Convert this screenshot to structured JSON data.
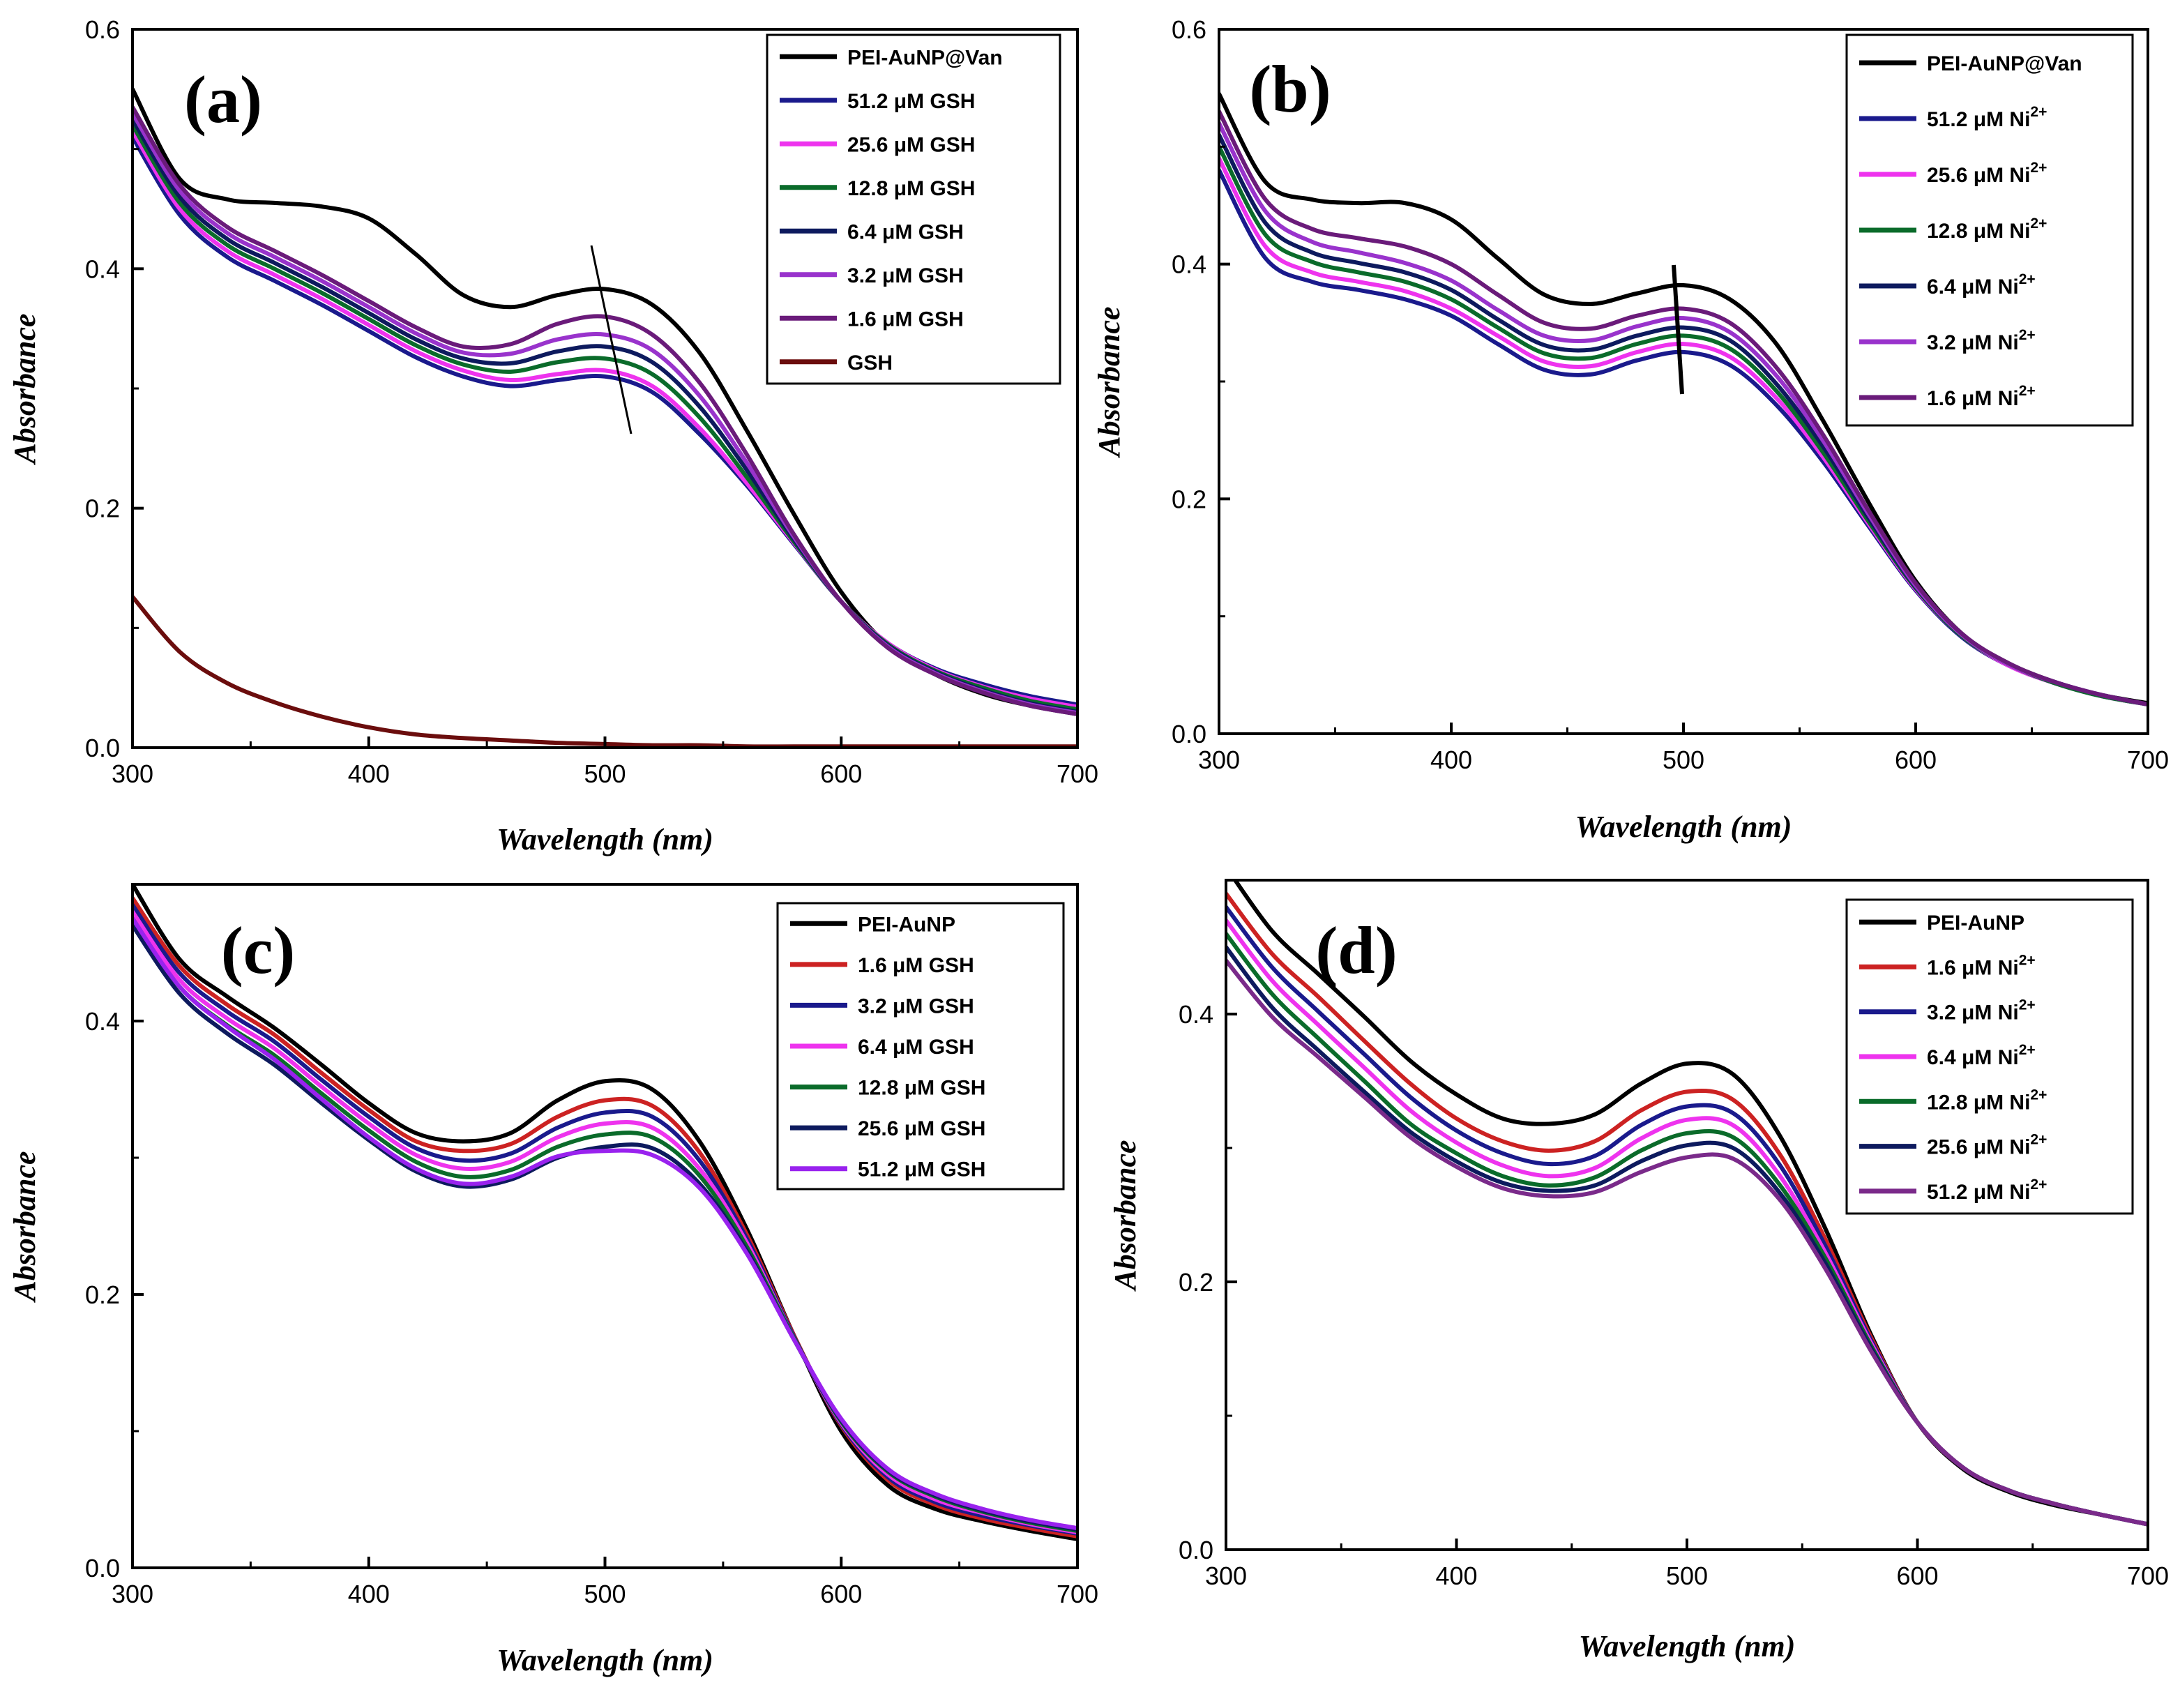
{
  "chart_data": [
    {
      "type": "line",
      "panel_label": "(a)",
      "xlabel": "Wavelength (nm)",
      "ylabel": "Absorbance",
      "xlim": [
        300,
        700
      ],
      "ylim": [
        0,
        0.6
      ],
      "xticks": [
        "300",
        "400",
        "500",
        "600",
        "700"
      ],
      "yticks": [
        "0.0",
        "0.2",
        "0.4",
        "0.6"
      ],
      "legend": "top-right",
      "x": [
        300,
        320,
        340,
        360,
        380,
        400,
        420,
        440,
        460,
        480,
        500,
        520,
        540,
        560,
        580,
        600,
        620,
        640,
        660,
        680,
        700
      ],
      "series": [
        {
          "name": "PEI-AuNP@Van",
          "color": "#000000",
          "values": [
            0.55,
            0.475,
            0.458,
            0.455,
            0.452,
            0.442,
            0.412,
            0.378,
            0.368,
            0.378,
            0.383,
            0.37,
            0.33,
            0.265,
            0.195,
            0.13,
            0.085,
            0.061,
            0.045,
            0.035,
            0.028
          ]
        },
        {
          "name": "51.2 μM GSH",
          "color": "#1a1a8c",
          "values": [
            0.51,
            0.445,
            0.41,
            0.39,
            0.37,
            0.348,
            0.326,
            0.31,
            0.302,
            0.307,
            0.31,
            0.297,
            0.262,
            0.219,
            0.17,
            0.122,
            0.087,
            0.066,
            0.053,
            0.043,
            0.036
          ]
        },
        {
          "name": "25.6 μM GSH",
          "color": "#ee33ee",
          "values": [
            0.515,
            0.45,
            0.415,
            0.395,
            0.375,
            0.353,
            0.331,
            0.315,
            0.307,
            0.312,
            0.315,
            0.302,
            0.267,
            0.221,
            0.171,
            0.122,
            0.087,
            0.065,
            0.051,
            0.041,
            0.034
          ]
        },
        {
          "name": "12.8 μM GSH",
          "color": "#0a6b2a",
          "values": [
            0.52,
            0.455,
            0.42,
            0.4,
            0.38,
            0.358,
            0.336,
            0.32,
            0.314,
            0.322,
            0.325,
            0.312,
            0.276,
            0.226,
            0.172,
            0.122,
            0.086,
            0.064,
            0.05,
            0.039,
            0.032
          ]
        },
        {
          "name": "6.4 μM GSH",
          "color": "#0d1a5e",
          "values": [
            0.525,
            0.46,
            0.425,
            0.405,
            0.385,
            0.363,
            0.341,
            0.325,
            0.321,
            0.331,
            0.335,
            0.322,
            0.285,
            0.232,
            0.174,
            0.122,
            0.085,
            0.063,
            0.048,
            0.037,
            0.03
          ]
        },
        {
          "name": "3.2 μM GSH",
          "color": "#9933cc",
          "values": [
            0.53,
            0.465,
            0.43,
            0.41,
            0.39,
            0.368,
            0.346,
            0.33,
            0.329,
            0.341,
            0.345,
            0.332,
            0.294,
            0.238,
            0.176,
            0.122,
            0.084,
            0.062,
            0.047,
            0.036,
            0.029
          ]
        },
        {
          "name": "1.6 μM GSH",
          "color": "#6a1b7a",
          "values": [
            0.535,
            0.47,
            0.435,
            0.415,
            0.395,
            0.373,
            0.351,
            0.335,
            0.337,
            0.354,
            0.36,
            0.345,
            0.305,
            0.245,
            0.178,
            0.122,
            0.083,
            0.061,
            0.046,
            0.035,
            0.028
          ]
        },
        {
          "name": "GSH",
          "color": "#6b0d0d",
          "values": [
            0.126,
            0.08,
            0.054,
            0.038,
            0.026,
            0.017,
            0.011,
            0.008,
            0.006,
            0.004,
            0.003,
            0.002,
            0.002,
            0.001,
            0.001,
            0.001,
            0.001,
            0.001,
            0.001,
            0.001,
            0.001
          ]
        }
      ]
    },
    {
      "type": "line",
      "panel_label": "(b)",
      "xlabel": "Wavelength (nm)",
      "ylabel": "Absorbance",
      "xlim": [
        300,
        700
      ],
      "ylim": [
        0,
        0.6
      ],
      "xticks": [
        "300",
        "400",
        "500",
        "600",
        "700"
      ],
      "yticks": [
        "0.0",
        "0.2",
        "0.4",
        "0.6"
      ],
      "legend": "top-right",
      "x": [
        300,
        320,
        340,
        360,
        380,
        400,
        420,
        440,
        460,
        480,
        500,
        520,
        540,
        560,
        580,
        600,
        620,
        640,
        660,
        680,
        700
      ],
      "series": [
        {
          "name": "PEI-AuNP@Van",
          "color": "#000000",
          "values": [
            0.545,
            0.47,
            0.455,
            0.452,
            0.452,
            0.438,
            0.405,
            0.374,
            0.366,
            0.375,
            0.382,
            0.37,
            0.332,
            0.267,
            0.196,
            0.13,
            0.085,
            0.06,
            0.044,
            0.033,
            0.026
          ]
        },
        {
          "name": "51.2 μM Ni2+",
          "color": "#1a1a8c",
          "values": [
            0.48,
            0.405,
            0.385,
            0.378,
            0.37,
            0.356,
            0.332,
            0.31,
            0.306,
            0.318,
            0.325,
            0.314,
            0.28,
            0.232,
            0.176,
            0.122,
            0.082,
            0.058,
            0.043,
            0.032,
            0.025
          ]
        },
        {
          "name": "25.6 μM Ni2+",
          "color": "#ee33ee",
          "values": [
            0.49,
            0.415,
            0.393,
            0.385,
            0.377,
            0.362,
            0.339,
            0.317,
            0.313,
            0.325,
            0.332,
            0.321,
            0.286,
            0.236,
            0.178,
            0.123,
            0.083,
            0.058,
            0.043,
            0.032,
            0.025
          ]
        },
        {
          "name": "12.8 μM Ni2+",
          "color": "#0a6b2a",
          "values": [
            0.5,
            0.425,
            0.402,
            0.393,
            0.385,
            0.37,
            0.346,
            0.324,
            0.32,
            0.332,
            0.339,
            0.328,
            0.292,
            0.24,
            0.18,
            0.124,
            0.083,
            0.059,
            0.043,
            0.032,
            0.025
          ]
        },
        {
          "name": "6.4 μM Ni2+",
          "color": "#0d1a5e",
          "values": [
            0.51,
            0.435,
            0.41,
            0.401,
            0.393,
            0.378,
            0.353,
            0.331,
            0.327,
            0.339,
            0.346,
            0.335,
            0.298,
            0.245,
            0.183,
            0.125,
            0.084,
            0.059,
            0.044,
            0.033,
            0.025
          ]
        },
        {
          "name": "3.2 μM Ni2+",
          "color": "#9933cc",
          "values": [
            0.52,
            0.445,
            0.419,
            0.41,
            0.401,
            0.386,
            0.361,
            0.339,
            0.335,
            0.347,
            0.354,
            0.342,
            0.305,
            0.25,
            0.186,
            0.126,
            0.084,
            0.059,
            0.044,
            0.033,
            0.025
          ]
        },
        {
          "name": "1.6 μM Ni2+",
          "color": "#6a1b7a",
          "values": [
            0.53,
            0.455,
            0.43,
            0.422,
            0.415,
            0.4,
            0.374,
            0.35,
            0.345,
            0.356,
            0.362,
            0.35,
            0.312,
            0.255,
            0.189,
            0.128,
            0.085,
            0.06,
            0.044,
            0.033,
            0.025
          ]
        }
      ]
    },
    {
      "type": "line",
      "panel_label": "(c)",
      "xlabel": "Wavelength (nm)",
      "ylabel": "Absorbance",
      "xlim": [
        300,
        700
      ],
      "ylim": [
        0,
        0.5
      ],
      "xticks": [
        "300",
        "400",
        "500",
        "600",
        "700"
      ],
      "yticks": [
        "0.0",
        "0.2",
        "0.4"
      ],
      "legend": "top-right",
      "x": [
        300,
        320,
        340,
        360,
        380,
        400,
        420,
        440,
        460,
        480,
        500,
        520,
        540,
        560,
        580,
        600,
        620,
        640,
        660,
        680,
        700
      ],
      "series": [
        {
          "name": "PEI-AuNP",
          "color": "#000000",
          "values": [
            0.5,
            0.445,
            0.418,
            0.395,
            0.368,
            0.34,
            0.318,
            0.312,
            0.318,
            0.342,
            0.356,
            0.35,
            0.312,
            0.248,
            0.17,
            0.1,
            0.06,
            0.043,
            0.034,
            0.027,
            0.021
          ]
        },
        {
          "name": "1.6 μM GSH",
          "color": "#cc2222",
          "values": [
            0.49,
            0.44,
            0.412,
            0.39,
            0.362,
            0.335,
            0.312,
            0.305,
            0.31,
            0.33,
            0.342,
            0.338,
            0.304,
            0.244,
            0.17,
            0.104,
            0.064,
            0.046,
            0.036,
            0.029,
            0.023
          ]
        },
        {
          "name": "3.2 μM GSH",
          "color": "#1a1a8c",
          "values": [
            0.485,
            0.435,
            0.407,
            0.385,
            0.357,
            0.33,
            0.307,
            0.298,
            0.303,
            0.322,
            0.333,
            0.33,
            0.298,
            0.241,
            0.169,
            0.105,
            0.066,
            0.048,
            0.038,
            0.031,
            0.025
          ]
        },
        {
          "name": "6.4 μM GSH",
          "color": "#ee33ee",
          "values": [
            0.48,
            0.43,
            0.402,
            0.38,
            0.352,
            0.325,
            0.302,
            0.292,
            0.297,
            0.315,
            0.325,
            0.322,
            0.292,
            0.238,
            0.168,
            0.106,
            0.068,
            0.05,
            0.04,
            0.032,
            0.026
          ]
        },
        {
          "name": "12.8 μM GSH",
          "color": "#0a6b2a",
          "values": [
            0.475,
            0.425,
            0.397,
            0.375,
            0.347,
            0.32,
            0.297,
            0.286,
            0.291,
            0.308,
            0.317,
            0.315,
            0.287,
            0.235,
            0.168,
            0.107,
            0.07,
            0.052,
            0.041,
            0.033,
            0.027
          ]
        },
        {
          "name": "25.6 μM GSH",
          "color": "#0d1a5e",
          "values": [
            0.47,
            0.42,
            0.391,
            0.368,
            0.34,
            0.313,
            0.29,
            0.279,
            0.284,
            0.3,
            0.308,
            0.307,
            0.281,
            0.232,
            0.167,
            0.108,
            0.071,
            0.053,
            0.042,
            0.034,
            0.028
          ]
        },
        {
          "name": "51.2 μM GSH",
          "color": "#9922ee",
          "values": [
            0.475,
            0.425,
            0.396,
            0.372,
            0.343,
            0.315,
            0.292,
            0.281,
            0.286,
            0.301,
            0.305,
            0.302,
            0.278,
            0.23,
            0.167,
            0.109,
            0.072,
            0.054,
            0.043,
            0.035,
            0.029
          ]
        }
      ]
    },
    {
      "type": "line",
      "panel_label": "(d)",
      "xlabel": "Wavelength (nm)",
      "ylabel": "Absorbance",
      "xlim": [
        300,
        700
      ],
      "ylim": [
        0,
        0.5
      ],
      "xticks": [
        "300",
        "400",
        "500",
        "600",
        "700"
      ],
      "yticks": [
        "0.0",
        "0.2",
        "0.4"
      ],
      "legend": "top-right",
      "x": [
        300,
        320,
        340,
        360,
        380,
        400,
        420,
        440,
        460,
        480,
        500,
        520,
        540,
        560,
        580,
        600,
        620,
        640,
        660,
        680,
        700
      ],
      "series": [
        {
          "name": "PEI-AuNP",
          "color": "#000000",
          "values": [
            0.51,
            0.462,
            0.43,
            0.398,
            0.365,
            0.34,
            0.322,
            0.318,
            0.325,
            0.348,
            0.363,
            0.355,
            0.31,
            0.24,
            0.16,
            0.095,
            0.06,
            0.043,
            0.033,
            0.026,
            0.019
          ]
        },
        {
          "name": "1.6 μM Ni2+",
          "color": "#cc2222",
          "values": [
            0.49,
            0.445,
            0.413,
            0.38,
            0.348,
            0.322,
            0.305,
            0.298,
            0.305,
            0.328,
            0.342,
            0.336,
            0.296,
            0.232,
            0.158,
            0.095,
            0.061,
            0.044,
            0.034,
            0.026,
            0.019
          ]
        },
        {
          "name": "3.2 μM Ni2+",
          "color": "#1a1a8c",
          "values": [
            0.48,
            0.435,
            0.402,
            0.37,
            0.338,
            0.313,
            0.296,
            0.288,
            0.294,
            0.317,
            0.331,
            0.326,
            0.288,
            0.227,
            0.156,
            0.095,
            0.061,
            0.044,
            0.034,
            0.026,
            0.019
          ]
        },
        {
          "name": "6.4 μM Ni2+",
          "color": "#ee33ee",
          "values": [
            0.47,
            0.425,
            0.392,
            0.36,
            0.328,
            0.304,
            0.287,
            0.279,
            0.285,
            0.307,
            0.321,
            0.317,
            0.28,
            0.222,
            0.154,
            0.095,
            0.061,
            0.044,
            0.034,
            0.026,
            0.019
          ]
        },
        {
          "name": "12.8 μM Ni2+",
          "color": "#0a6b2a",
          "values": [
            0.46,
            0.415,
            0.382,
            0.35,
            0.318,
            0.296,
            0.279,
            0.272,
            0.278,
            0.298,
            0.311,
            0.308,
            0.273,
            0.218,
            0.152,
            0.095,
            0.061,
            0.044,
            0.034,
            0.026,
            0.019
          ]
        },
        {
          "name": "25.6 μM Ni2+",
          "color": "#0d1a5e",
          "values": [
            0.45,
            0.405,
            0.373,
            0.342,
            0.312,
            0.29,
            0.274,
            0.268,
            0.272,
            0.29,
            0.302,
            0.3,
            0.267,
            0.214,
            0.15,
            0.095,
            0.061,
            0.044,
            0.034,
            0.026,
            0.019
          ]
        },
        {
          "name": "51.2 μM Ni2+",
          "color": "#7a2a8a",
          "values": [
            0.44,
            0.398,
            0.368,
            0.338,
            0.308,
            0.286,
            0.27,
            0.264,
            0.267,
            0.282,
            0.293,
            0.292,
            0.262,
            0.21,
            0.148,
            0.095,
            0.061,
            0.044,
            0.034,
            0.026,
            0.019
          ]
        }
      ]
    }
  ]
}
